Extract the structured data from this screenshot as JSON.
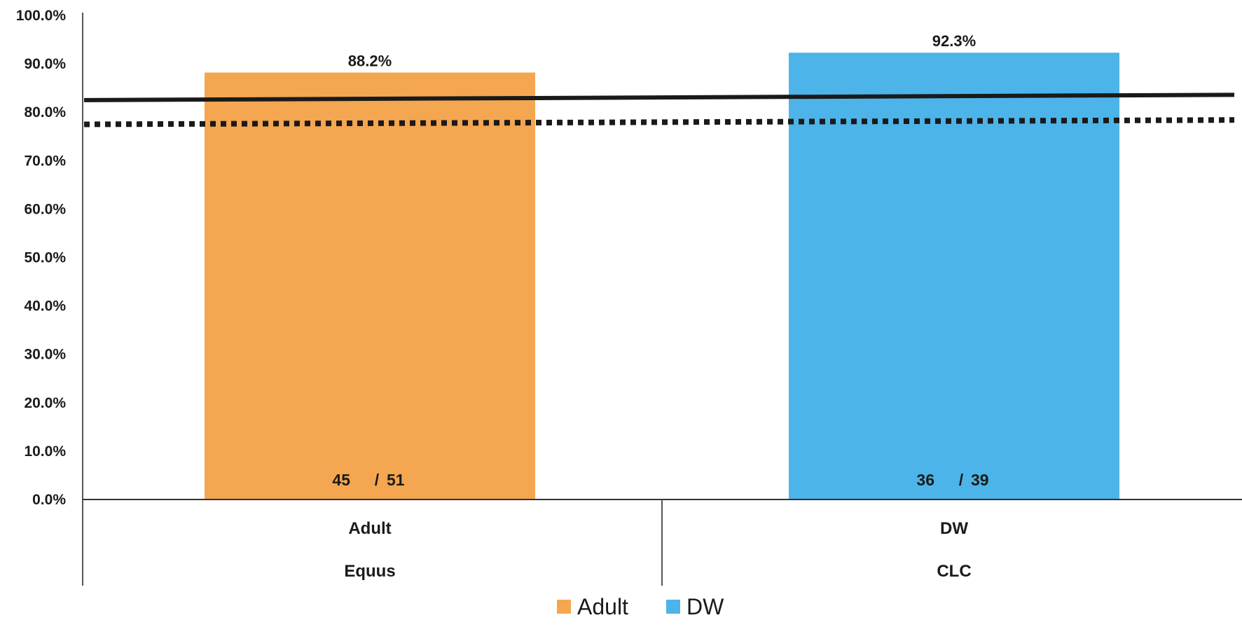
{
  "chart_data": {
    "type": "bar",
    "categories": [
      "Adult",
      "DW"
    ],
    "groups": [
      "Equus",
      "CLC"
    ],
    "series": [
      {
        "name": "Adult",
        "values": [
          88.2,
          null
        ]
      },
      {
        "name": "DW",
        "values": [
          null,
          92.3
        ]
      }
    ],
    "bars": [
      {
        "series": "Adult",
        "category": "Adult",
        "group": "Equus",
        "value": 88.2,
        "label": "88.2%",
        "count": "45",
        "total": "51"
      },
      {
        "series": "DW",
        "category": "DW",
        "group": "CLC",
        "value": 92.3,
        "label": "92.3%",
        "count": "36",
        "total": "39"
      }
    ],
    "reference_lines": [
      {
        "style": "solid",
        "y_start": 82.5,
        "y_end": 83.6
      },
      {
        "style": "dotted",
        "y_start": 77.5,
        "y_end": 78.4
      }
    ],
    "yticks": [
      "0.0%",
      "10.0%",
      "20.0%",
      "30.0%",
      "40.0%",
      "50.0%",
      "60.0%",
      "70.0%",
      "80.0%",
      "90.0%",
      "100.0%"
    ],
    "ylim": [
      0,
      100
    ],
    "title": "",
    "xlabel": "",
    "ylabel": "",
    "grid": false,
    "legend": {
      "position": "bottom",
      "entries": [
        "Adult",
        "DW"
      ]
    },
    "colors": {
      "Adult": "#f5a650",
      "DW": "#4db4e9",
      "axis": "#555555",
      "lines": "#1a1a1a"
    }
  }
}
